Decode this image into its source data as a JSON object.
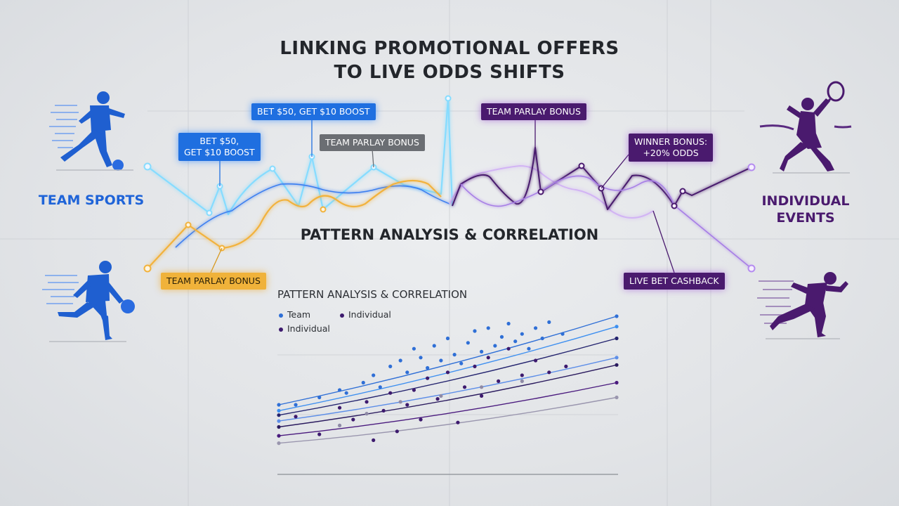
{
  "title": {
    "line1": "LINKING PROMOTIONAL OFFERS",
    "line2": "TO LIVE ODDS SHIFTS"
  },
  "left_label": "TEAM SPORTS",
  "right_label": {
    "line1": "INDIVIDUAL",
    "line2": "EVENTS"
  },
  "callouts": {
    "bet_boost_top": "BET $50, GET $10 BOOST",
    "bet_boost_left_line1": "BET $50,",
    "bet_boost_left_line2": "GET $10 BOOST",
    "team_parlay_gray": "TEAM PARLAY BONUS",
    "team_parlay_purple": "TEAM PARLAY BONUS",
    "winner_bonus_line1": "WINNER BONUS:",
    "winner_bonus_line2": "+20% ODDS",
    "team_parlay_orange": "TEAM PARLAY BONUS",
    "live_bet_cashback": "LIVE BET CASHBACK"
  },
  "section_title": "PATTERN ANALYSIS & CORRELATION",
  "chart_data": {
    "type": "scatter",
    "title": "PATTERN ANALYSIS & CORRELATION",
    "legend": [
      "Team",
      "Individual",
      "Individual"
    ],
    "legend_placement": "top-left",
    "grid": true,
    "series": [
      {
        "name": "Team",
        "color": "#2f6fd6",
        "points": [
          [
            0.05,
            0.4
          ],
          [
            0.12,
            0.45
          ],
          [
            0.18,
            0.5
          ],
          [
            0.2,
            0.48
          ],
          [
            0.25,
            0.55
          ],
          [
            0.28,
            0.6
          ],
          [
            0.3,
            0.52
          ],
          [
            0.33,
            0.66
          ],
          [
            0.36,
            0.7
          ],
          [
            0.38,
            0.62
          ],
          [
            0.4,
            0.78
          ],
          [
            0.42,
            0.72
          ],
          [
            0.44,
            0.65
          ],
          [
            0.46,
            0.8
          ],
          [
            0.48,
            0.7
          ],
          [
            0.5,
            0.85
          ],
          [
            0.52,
            0.74
          ],
          [
            0.54,
            0.68
          ],
          [
            0.56,
            0.82
          ],
          [
            0.58,
            0.9
          ],
          [
            0.6,
            0.76
          ],
          [
            0.62,
            0.92
          ],
          [
            0.64,
            0.8
          ],
          [
            0.66,
            0.86
          ],
          [
            0.68,
            0.95
          ],
          [
            0.7,
            0.83
          ],
          [
            0.72,
            0.88
          ],
          [
            0.74,
            0.78
          ],
          [
            0.76,
            0.92
          ],
          [
            0.78,
            0.85
          ],
          [
            0.8,
            0.96
          ],
          [
            0.84,
            0.88
          ]
        ]
      },
      {
        "name": "Individual",
        "color": "#3d1a6e",
        "points": [
          [
            0.05,
            0.32
          ],
          [
            0.12,
            0.2
          ],
          [
            0.18,
            0.38
          ],
          [
            0.22,
            0.3
          ],
          [
            0.26,
            0.42
          ],
          [
            0.28,
            0.16
          ],
          [
            0.31,
            0.36
          ],
          [
            0.33,
            0.48
          ],
          [
            0.35,
            0.22
          ],
          [
            0.38,
            0.4
          ],
          [
            0.4,
            0.5
          ],
          [
            0.42,
            0.3
          ],
          [
            0.44,
            0.58
          ],
          [
            0.47,
            0.44
          ],
          [
            0.5,
            0.62
          ],
          [
            0.53,
            0.28
          ],
          [
            0.55,
            0.52
          ],
          [
            0.58,
            0.66
          ],
          [
            0.6,
            0.46
          ],
          [
            0.62,
            0.72
          ],
          [
            0.65,
            0.56
          ],
          [
            0.68,
            0.78
          ],
          [
            0.72,
            0.6
          ],
          [
            0.76,
            0.7
          ],
          [
            0.8,
            0.62
          ],
          [
            0.85,
            0.66
          ]
        ]
      },
      {
        "name": "Individual",
        "color": "#8e8aa6",
        "points": [
          [
            0.18,
            0.26
          ],
          [
            0.26,
            0.34
          ],
          [
            0.36,
            0.42
          ],
          [
            0.48,
            0.46
          ],
          [
            0.6,
            0.52
          ],
          [
            0.72,
            0.56
          ]
        ]
      }
    ],
    "trend_lines": [
      {
        "color": "#2f6fd6",
        "y_start": 0.4,
        "y_end": 1.0
      },
      {
        "color": "#3d8ff0",
        "y_start": 0.36,
        "y_end": 0.93
      },
      {
        "color": "#23236e",
        "y_start": 0.33,
        "y_end": 0.85
      },
      {
        "color": "#5d8ee8",
        "y_start": 0.29,
        "y_end": 0.72
      },
      {
        "color": "#2a1a5e",
        "y_start": 0.25,
        "y_end": 0.67
      },
      {
        "color": "#4a1a7e",
        "y_start": 0.19,
        "y_end": 0.55
      },
      {
        "color": "#9a96ae",
        "y_start": 0.14,
        "y_end": 0.45
      }
    ]
  },
  "colors": {
    "blue": "#2f7cf0",
    "cyan": "#7fd6ff",
    "orange": "#f0b23a",
    "purple": "#4a1a6e",
    "violet": "#b58cf0"
  },
  "icons": {
    "soccer": "soccer-player-icon",
    "basketball": "basketball-player-icon",
    "tennis": "tennis-player-icon",
    "runner": "sprinter-icon"
  }
}
